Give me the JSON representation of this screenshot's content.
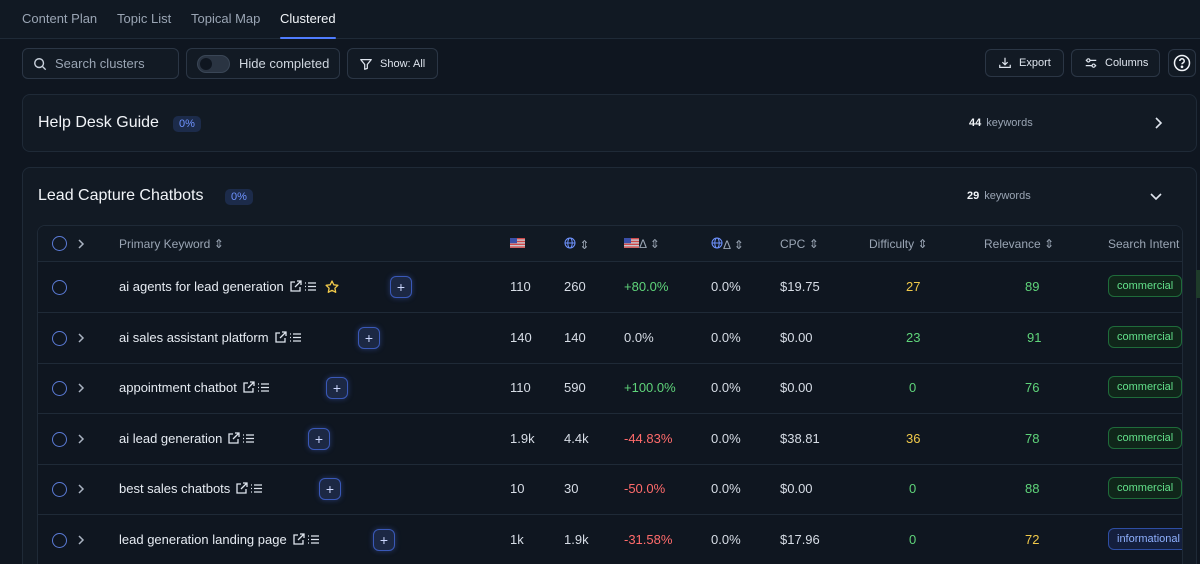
{
  "tabs": [
    "Content Plan",
    "Topic List",
    "Topical Map",
    "Clustered"
  ],
  "toolbar": {
    "search_placeholder": "Search clusters",
    "hide_completed": "Hide completed",
    "show": "Show: All",
    "export": "Export",
    "columns": "Columns"
  },
  "clusters": [
    {
      "title": "Help Desk Guide",
      "pct": "0%",
      "count": "44",
      "count_label": "keywords"
    },
    {
      "title": "Lead Capture Chatbots",
      "pct": "0%",
      "count": "29",
      "count_label": "keywords"
    }
  ],
  "columns": {
    "primary_keyword": "Primary Keyword",
    "us_volume": "",
    "global_volume": "",
    "us_delta": "Δ",
    "global_delta": "Δ",
    "cpc": "CPC",
    "difficulty": "Difficulty",
    "relevance": "Relevance",
    "search_intent": "Search Intent"
  },
  "rows": [
    {
      "keyword": "ai agents for lead generation",
      "starred": true,
      "us": "110",
      "global": "260",
      "us_delta": "+80.0%",
      "global_delta": "0.0%",
      "cpc": "$19.75",
      "difficulty": "27",
      "relevance": "89",
      "intent": "commercial"
    },
    {
      "keyword": "ai sales assistant platform",
      "starred": false,
      "us": "140",
      "global": "140",
      "us_delta": "0.0%",
      "global_delta": "0.0%",
      "cpc": "$0.00",
      "difficulty": "23",
      "relevance": "91",
      "intent": "commercial"
    },
    {
      "keyword": "appointment chatbot",
      "starred": false,
      "us": "110",
      "global": "590",
      "us_delta": "+100.0%",
      "global_delta": "0.0%",
      "cpc": "$0.00",
      "difficulty": "0",
      "relevance": "76",
      "intent": "commercial"
    },
    {
      "keyword": "ai lead generation",
      "starred": false,
      "us": "1.9k",
      "global": "4.4k",
      "us_delta": "-44.83%",
      "global_delta": "0.0%",
      "cpc": "$38.81",
      "difficulty": "36",
      "relevance": "78",
      "intent": "commercial"
    },
    {
      "keyword": "best sales chatbots",
      "starred": false,
      "us": "10",
      "global": "30",
      "us_delta": "-50.0%",
      "global_delta": "0.0%",
      "cpc": "$0.00",
      "difficulty": "0",
      "relevance": "88",
      "intent": "commercial"
    },
    {
      "keyword": "lead generation landing page",
      "starred": false,
      "us": "1k",
      "global": "1.9k",
      "us_delta": "-31.58%",
      "global_delta": "0.0%",
      "cpc": "$17.96",
      "difficulty": "0",
      "relevance": "72",
      "intent": "informational"
    }
  ],
  "colors": {
    "accent": "#4f7cff",
    "positive": "#5fd47a",
    "negative": "#ff6b6b",
    "warning": "#f0c94a"
  }
}
